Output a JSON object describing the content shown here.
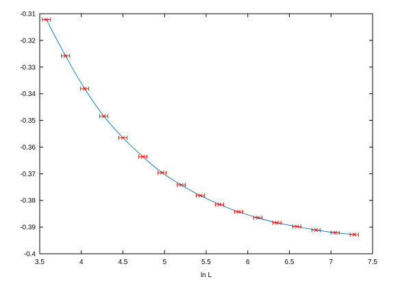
{
  "chart_data": {
    "type": "scatter",
    "title": "",
    "xlabel": "ln L",
    "ylabel": "",
    "xlim": [
      3.5,
      7.5
    ],
    "ylim": [
      -0.4,
      -0.31
    ],
    "x_ticks": [
      3.5,
      4,
      4.5,
      5,
      5.5,
      6,
      6.5,
      7,
      7.5
    ],
    "x_tick_labels": [
      "3.5",
      "4",
      "4.5",
      "5",
      "5.5",
      "6",
      "6.5",
      "7",
      "7.5"
    ],
    "y_ticks": [
      -0.31,
      -0.32,
      -0.33,
      -0.34,
      -0.35,
      -0.36,
      -0.37,
      -0.38,
      -0.39,
      -0.4
    ],
    "y_tick_labels": [
      "-0.31",
      "-0.32",
      "-0.33",
      "-0.34",
      "-0.35",
      "-0.36",
      "-0.37",
      "-0.38",
      "-0.39",
      "-0.4"
    ],
    "grid": false,
    "legend": "none",
    "colors": {
      "points": "#e41a1c",
      "fit_line": "#1f78b4",
      "axes": "#000000"
    },
    "series": [
      {
        "kind": "points_with_error_bars",
        "x": [
          3.58,
          3.81,
          4.04,
          4.27,
          4.5,
          4.74,
          4.97,
          5.2,
          5.43,
          5.66,
          5.89,
          6.12,
          6.35,
          6.59,
          6.82,
          7.05,
          7.28
        ],
        "y": [
          -0.3122,
          -0.3258,
          -0.3381,
          -0.3484,
          -0.3565,
          -0.3636,
          -0.3696,
          -0.3742,
          -0.3782,
          -0.3815,
          -0.3843,
          -0.3865,
          -0.3884,
          -0.3898,
          -0.3911,
          -0.3921,
          -0.3928
        ]
      },
      {
        "kind": "fit_curve",
        "x": [
          3.58,
          3.81,
          4.04,
          4.27,
          4.5,
          4.74,
          4.97,
          5.2,
          5.43,
          5.66,
          5.89,
          6.12,
          6.35,
          6.59,
          6.82,
          7.05,
          7.28
        ],
        "y": [
          -0.3122,
          -0.3258,
          -0.3381,
          -0.3484,
          -0.3565,
          -0.3636,
          -0.3696,
          -0.3742,
          -0.3782,
          -0.3815,
          -0.3843,
          -0.3865,
          -0.3884,
          -0.3898,
          -0.3911,
          -0.3921,
          -0.3928
        ]
      }
    ]
  }
}
